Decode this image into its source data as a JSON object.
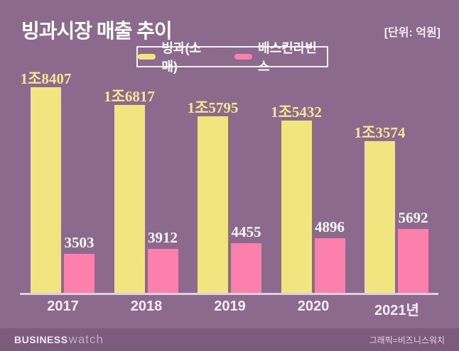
{
  "header": {
    "title": "빙과시장 매출 추이",
    "unit_label": "[단위: 억원]"
  },
  "chart_data": {
    "type": "bar",
    "title": "빙과시장 매출 추이",
    "unit": "억원",
    "categories": [
      "2017",
      "2018",
      "2019",
      "2020",
      "2021년"
    ],
    "series": [
      {
        "name": "빙과(소매)",
        "color": "#f0e57e",
        "label_color": "#f2e98e",
        "values": [
          18407,
          16817,
          15795,
          15432,
          13574
        ],
        "value_labels": [
          "1조8407",
          "1조6817",
          "1조5795",
          "1조5432",
          "1조3574"
        ]
      },
      {
        "name": "배스킨라빈스",
        "color": "#fc80ac",
        "label_color": "#fdf8f3",
        "values": [
          3503,
          3912,
          4455,
          4896,
          5692
        ],
        "value_labels": [
          "3503",
          "3912",
          "4455",
          "4896",
          "5692"
        ]
      }
    ],
    "ylim": [
      0,
      18407
    ],
    "grid": false,
    "legend_position": "top-center"
  },
  "footer": {
    "brand_bold": "BUSINESS",
    "brand_light": "watch",
    "credit": "그래픽=비즈니스워치"
  },
  "colors": {
    "background": "#8c6a8d",
    "footer_background": "#7c5b7e",
    "axis_line": "#ded0de"
  }
}
